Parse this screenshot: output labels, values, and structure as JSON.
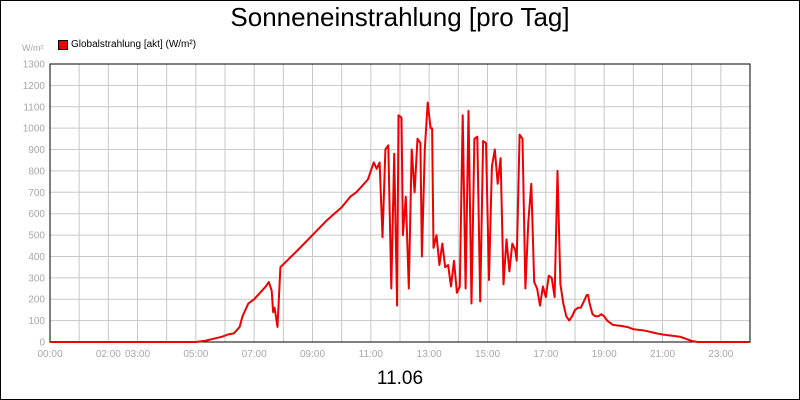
{
  "chart_data": {
    "type": "line",
    "title": "Sonneneinstrahlung [pro Tag]",
    "ylabel": "W/m²",
    "xlabel": "11.06",
    "ylim": [
      0,
      1300
    ],
    "xlim": [
      0,
      24
    ],
    "grid": true,
    "legend_position": "top-left",
    "y_ticks": [
      0,
      100,
      200,
      300,
      400,
      500,
      600,
      700,
      800,
      900,
      1000,
      1100,
      1200,
      1300
    ],
    "x_ticks": [
      {
        "x": 0,
        "label": "00:00"
      },
      {
        "x": 2,
        "label": "02:00"
      },
      {
        "x": 3,
        "label": "03:00"
      },
      {
        "x": 5,
        "label": "05:00"
      },
      {
        "x": 7,
        "label": "07:00"
      },
      {
        "x": 9,
        "label": "09:00"
      },
      {
        "x": 11,
        "label": "11:00"
      },
      {
        "x": 13,
        "label": "13:00"
      },
      {
        "x": 15,
        "label": "15:00"
      },
      {
        "x": 17,
        "label": "17:00"
      },
      {
        "x": 19,
        "label": "19:00"
      },
      {
        "x": 21,
        "label": "21:00"
      },
      {
        "x": 23,
        "label": "23:00"
      }
    ],
    "series": [
      {
        "name": "Globalstrahlung [akt] (W/m²)",
        "color": "#ee0000",
        "points": [
          [
            0,
            0
          ],
          [
            5.0,
            0
          ],
          [
            5.3,
            5
          ],
          [
            5.6,
            15
          ],
          [
            5.9,
            25
          ],
          [
            6.1,
            35
          ],
          [
            6.3,
            40
          ],
          [
            6.5,
            70
          ],
          [
            6.6,
            120
          ],
          [
            6.8,
            180
          ],
          [
            7.0,
            200
          ],
          [
            7.2,
            230
          ],
          [
            7.4,
            260
          ],
          [
            7.5,
            280
          ],
          [
            7.6,
            240
          ],
          [
            7.65,
            140
          ],
          [
            7.7,
            160
          ],
          [
            7.8,
            70
          ],
          [
            7.9,
            350
          ],
          [
            8.5,
            430
          ],
          [
            9.0,
            500
          ],
          [
            9.5,
            570
          ],
          [
            10.0,
            630
          ],
          [
            10.3,
            680
          ],
          [
            10.5,
            700
          ],
          [
            10.7,
            730
          ],
          [
            10.9,
            760
          ],
          [
            11.0,
            800
          ],
          [
            11.1,
            840
          ],
          [
            11.2,
            810
          ],
          [
            11.3,
            840
          ],
          [
            11.4,
            490
          ],
          [
            11.5,
            900
          ],
          [
            11.6,
            920
          ],
          [
            11.7,
            250
          ],
          [
            11.8,
            880
          ],
          [
            11.9,
            170
          ],
          [
            11.95,
            1060
          ],
          [
            12.05,
            1050
          ],
          [
            12.1,
            500
          ],
          [
            12.2,
            680
          ],
          [
            12.3,
            250
          ],
          [
            12.4,
            900
          ],
          [
            12.5,
            700
          ],
          [
            12.6,
            950
          ],
          [
            12.7,
            930
          ],
          [
            12.75,
            400
          ],
          [
            12.85,
            900
          ],
          [
            12.95,
            1120
          ],
          [
            13.05,
            1000
          ],
          [
            13.1,
            1000
          ],
          [
            13.15,
            440
          ],
          [
            13.25,
            500
          ],
          [
            13.35,
            360
          ],
          [
            13.45,
            460
          ],
          [
            13.55,
            350
          ],
          [
            13.65,
            360
          ],
          [
            13.75,
            260
          ],
          [
            13.85,
            380
          ],
          [
            13.95,
            230
          ],
          [
            14.05,
            260
          ],
          [
            14.15,
            1060
          ],
          [
            14.25,
            250
          ],
          [
            14.35,
            1080
          ],
          [
            14.45,
            180
          ],
          [
            14.55,
            950
          ],
          [
            14.65,
            960
          ],
          [
            14.75,
            190
          ],
          [
            14.85,
            940
          ],
          [
            14.95,
            930
          ],
          [
            15.05,
            290
          ],
          [
            15.15,
            820
          ],
          [
            15.25,
            900
          ],
          [
            15.35,
            740
          ],
          [
            15.45,
            860
          ],
          [
            15.55,
            270
          ],
          [
            15.65,
            480
          ],
          [
            15.75,
            330
          ],
          [
            15.85,
            460
          ],
          [
            15.95,
            430
          ],
          [
            16.0,
            380
          ],
          [
            16.1,
            970
          ],
          [
            16.2,
            950
          ],
          [
            16.3,
            250
          ],
          [
            16.4,
            560
          ],
          [
            16.5,
            740
          ],
          [
            16.6,
            280
          ],
          [
            16.7,
            250
          ],
          [
            16.8,
            170
          ],
          [
            16.9,
            260
          ],
          [
            17.0,
            210
          ],
          [
            17.1,
            310
          ],
          [
            17.2,
            300
          ],
          [
            17.3,
            210
          ],
          [
            17.4,
            800
          ],
          [
            17.5,
            270
          ],
          [
            17.6,
            180
          ],
          [
            17.7,
            120
          ],
          [
            17.8,
            100
          ],
          [
            17.9,
            120
          ],
          [
            18.0,
            150
          ],
          [
            18.1,
            160
          ],
          [
            18.2,
            160
          ],
          [
            18.3,
            190
          ],
          [
            18.4,
            220
          ],
          [
            18.45,
            220
          ],
          [
            18.5,
            180
          ],
          [
            18.6,
            130
          ],
          [
            18.7,
            120
          ],
          [
            18.8,
            120
          ],
          [
            18.9,
            130
          ],
          [
            19.0,
            120
          ],
          [
            19.1,
            100
          ],
          [
            19.3,
            80
          ],
          [
            19.6,
            75
          ],
          [
            19.8,
            70
          ],
          [
            20.0,
            60
          ],
          [
            20.3,
            55
          ],
          [
            20.5,
            50
          ],
          [
            20.8,
            40
          ],
          [
            21.0,
            35
          ],
          [
            21.3,
            30
          ],
          [
            21.6,
            25
          ],
          [
            21.8,
            15
          ],
          [
            22.0,
            5
          ],
          [
            22.2,
            0
          ],
          [
            24,
            0
          ]
        ]
      }
    ]
  }
}
